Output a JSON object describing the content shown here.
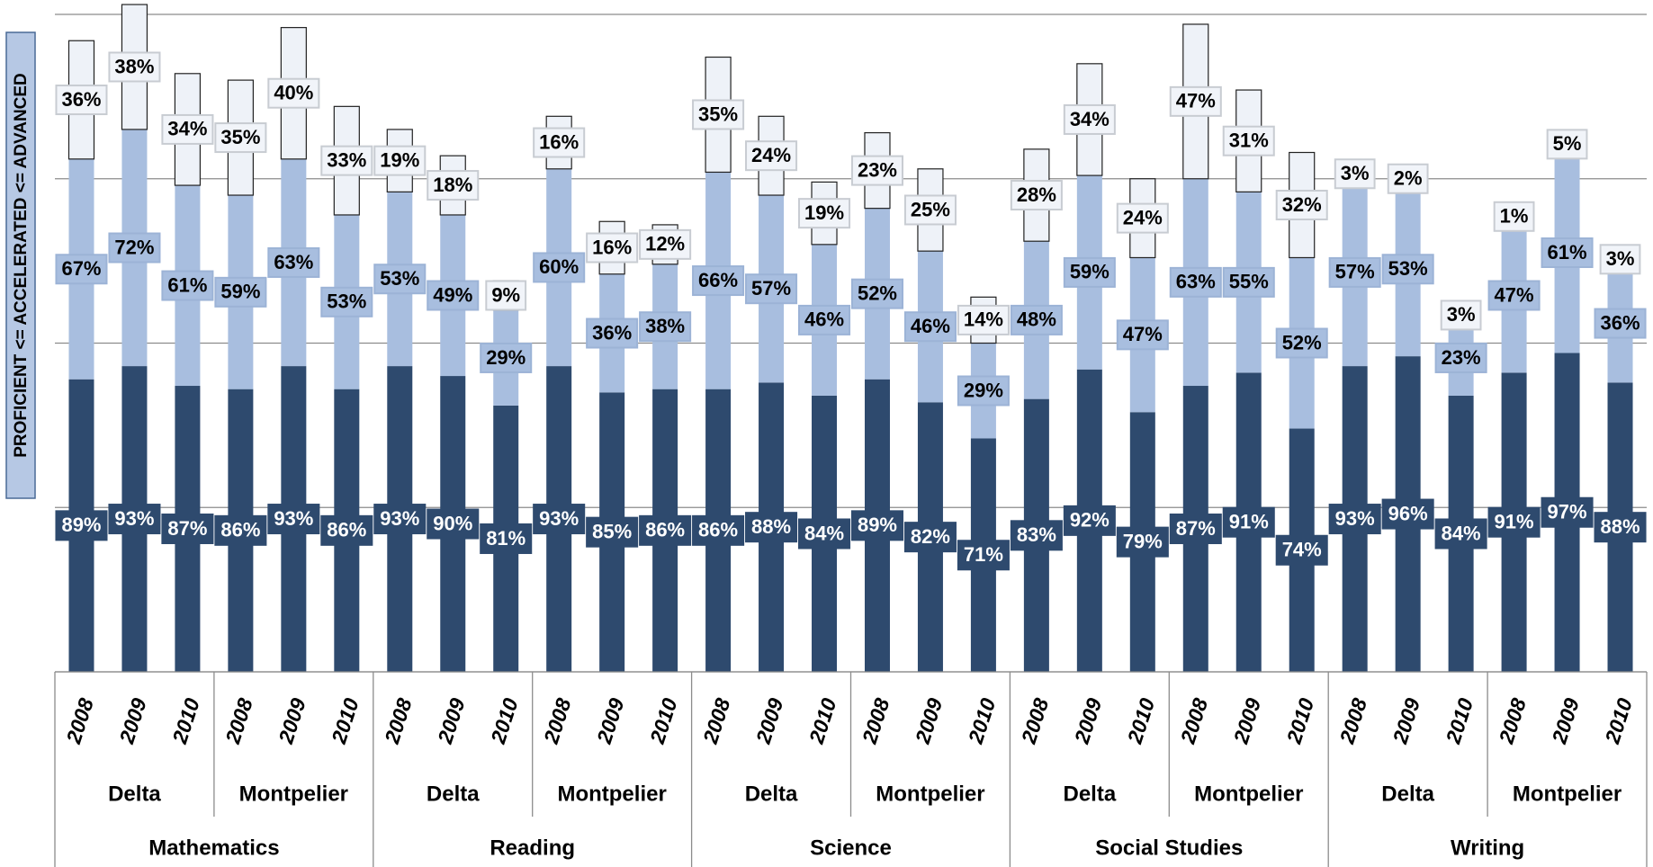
{
  "chart_data": {
    "type": "stacked_bar",
    "y_label": "PROFICIENT <= ACCELERATED <= ADVANCED",
    "categories": [
      "2008",
      "2009",
      "2010",
      "2008",
      "2009",
      "2010",
      "2008",
      "2009",
      "2010",
      "2008",
      "2009",
      "2010",
      "2008",
      "2009",
      "2010",
      "2008",
      "2009",
      "2010",
      "2008",
      "2009",
      "2010",
      "2008",
      "2009",
      "2010",
      "2008",
      "2009",
      "2010",
      "2008",
      "2009",
      "2010"
    ],
    "schools": [
      "Delta",
      "Montpelier",
      "Delta",
      "Montpelier",
      "Delta",
      "Montpelier",
      "Delta",
      "Montpelier",
      "Delta",
      "Montpelier"
    ],
    "subjects": [
      "Mathematics",
      "Reading",
      "Science",
      "Social Studies",
      "Writing"
    ],
    "ylim": [
      0,
      200
    ],
    "yticks": [
      0,
      50,
      100,
      150,
      200
    ],
    "grid": true,
    "series": [
      {
        "color": "#2e4a6e",
        "label_color": "#ffffff",
        "values": [
          89,
          93,
          87,
          86,
          93,
          86,
          93,
          90,
          81,
          93,
          85,
          86,
          86,
          88,
          84,
          89,
          82,
          71,
          83,
          92,
          79,
          87,
          91,
          74,
          93,
          96,
          84,
          91,
          97,
          88
        ],
        "value_labels": [
          "89%",
          "93%",
          "87%",
          "86%",
          "93%",
          "86%",
          "93%",
          "90%",
          "81%",
          "93%",
          "85%",
          "86%",
          "86%",
          "88%",
          "84%",
          "89%",
          "82%",
          "71%",
          "83%",
          "92%",
          "79%",
          "87%",
          "91%",
          "74%",
          "93%",
          "96%",
          "84%",
          "91%",
          "97%",
          "88%"
        ]
      },
      {
        "color": "#a8bedf",
        "label_color": "#000000",
        "values": [
          67,
          72,
          61,
          59,
          63,
          53,
          53,
          49,
          29,
          60,
          36,
          38,
          66,
          57,
          46,
          52,
          46,
          29,
          48,
          59,
          47,
          63,
          55,
          52,
          57,
          53,
          23,
          47,
          61,
          36
        ],
        "value_labels": [
          "67%",
          "72%",
          "61%",
          "59%",
          "63%",
          "53%",
          "53%",
          "49%",
          "29%",
          "60%",
          "36%",
          "38%",
          "66%",
          "57%",
          "46%",
          "52%",
          "46%",
          "29%",
          "48%",
          "59%",
          "47%",
          "63%",
          "55%",
          "52%",
          "57%",
          "53%",
          "23%",
          "47%",
          "61%",
          "36%"
        ]
      },
      {
        "color": "#eef2f8",
        "label_color": "#000000",
        "values": [
          36,
          38,
          34,
          35,
          40,
          33,
          19,
          18,
          9,
          16,
          16,
          12,
          35,
          24,
          19,
          23,
          25,
          14,
          28,
          34,
          24,
          47,
          31,
          32,
          3,
          2,
          3,
          1,
          5,
          3
        ],
        "value_labels": [
          "36%",
          "38%",
          "34%",
          "35%",
          "40%",
          "33%",
          "19%",
          "18%",
          "9%",
          "16%",
          "16%",
          "12%",
          "35%",
          "24%",
          "19%",
          "23%",
          "25%",
          "14%",
          "28%",
          "34%",
          "24%",
          "47%",
          "31%",
          "32%",
          "3%",
          "2%",
          "3%",
          "1%",
          "5%",
          "3%"
        ]
      }
    ]
  }
}
